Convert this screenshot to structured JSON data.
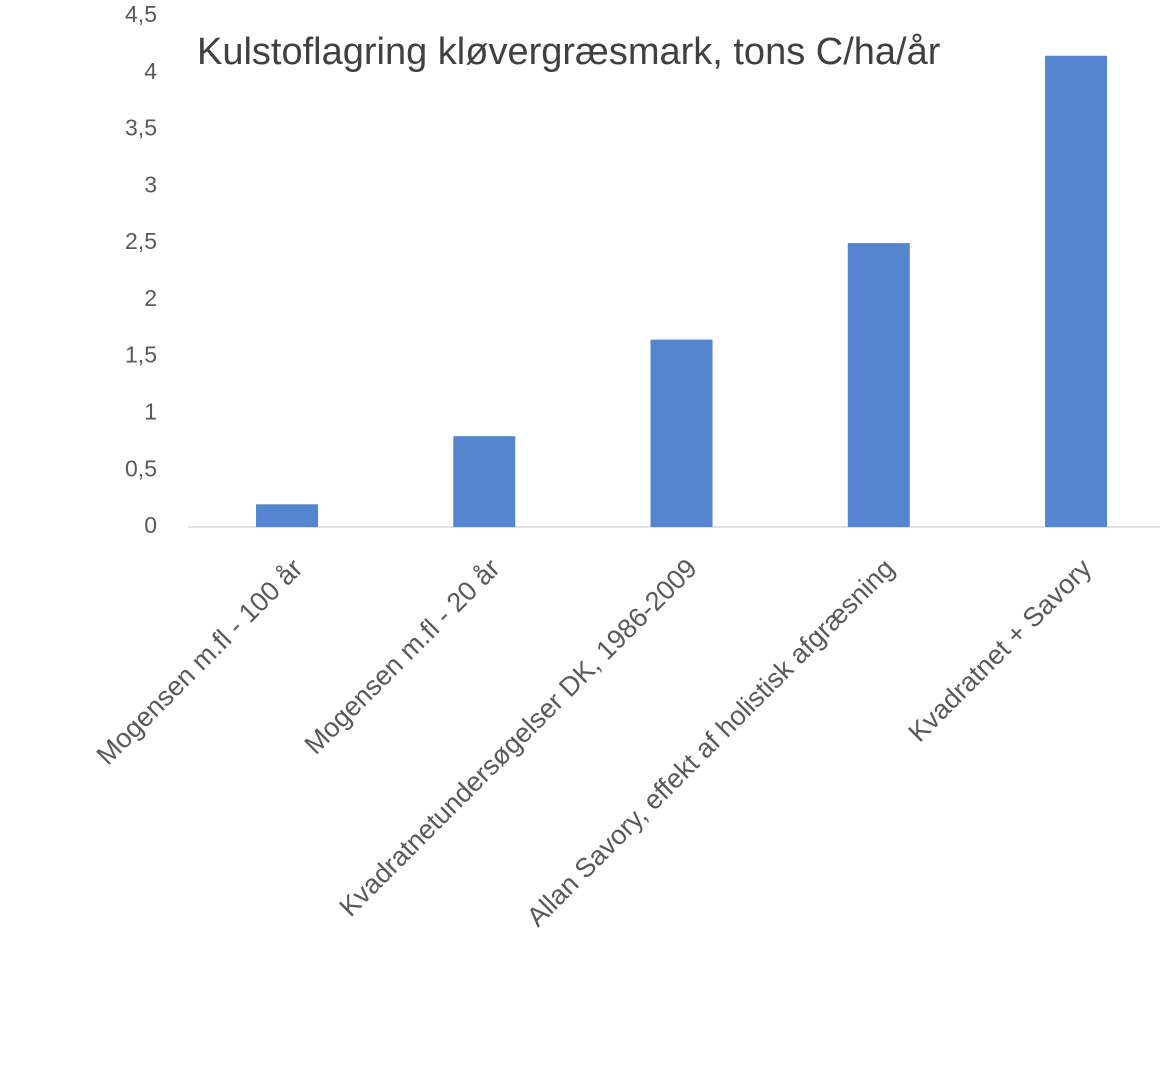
{
  "chart_data": {
    "type": "bar",
    "title": "Kulstoflagring kløvergræsmark, tons C/ha/år",
    "categories": [
      "Mogensen m.fl - 100 år",
      "Mogensen m.fl - 20 år",
      "Kvadratnetundersøgelser DK, 1986-2009",
      "Allan Savory, effekt af holistisk afgræsning",
      "Kvadratnet + Savory"
    ],
    "values": [
      0.2,
      0.8,
      1.65,
      2.5,
      4.15
    ],
    "color": "#5585cf",
    "ylim": [
      0,
      4.5
    ],
    "yticks": [
      0,
      {
        "value": 0.5,
        "label": "0,5"
      },
      1,
      {
        "value": 1.5,
        "label": "1,5"
      },
      2,
      {
        "value": 2.5,
        "label": "2,5"
      },
      3,
      {
        "value": 3.5,
        "label": "3,5"
      },
      4,
      {
        "value": 4.5,
        "label": "4,5"
      }
    ],
    "grid": false
  }
}
